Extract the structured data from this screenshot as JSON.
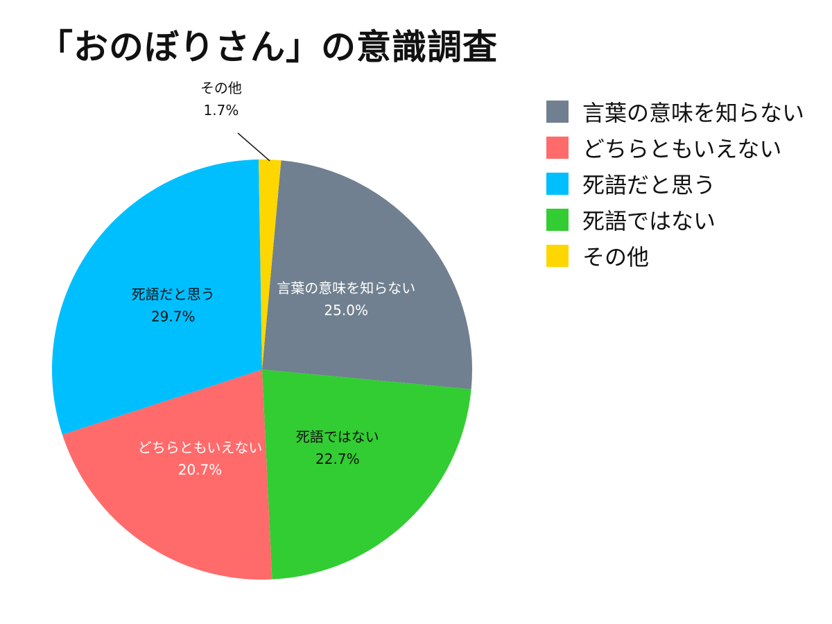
{
  "chart_data": {
    "type": "pie",
    "title": "「おのぼりさん」の意識調査",
    "legend_position": "top-right",
    "slices": [
      {
        "label": "言葉の意味を知らない",
        "value": 25.0,
        "value_label": "25.0%",
        "color": "#708090",
        "text_color": "#ffffff"
      },
      {
        "label": "死語ではない",
        "value": 22.7,
        "value_label": "22.7%",
        "color": "#32cd32",
        "text_color": "#111111"
      },
      {
        "label": "どちらともいえない",
        "value": 20.7,
        "value_label": "20.7%",
        "color": "#ff6b6b",
        "text_color": "#ffffff"
      },
      {
        "label": "死語だと思う",
        "value": 29.7,
        "value_label": "29.7%",
        "color": "#00bfff",
        "text_color": "#111111"
      },
      {
        "label": "その他",
        "value": 1.7,
        "value_label": "1.7%",
        "color": "#ffd700",
        "text_color": "#111111"
      }
    ],
    "legend": [
      {
        "label": "言葉の意味を知らない",
        "color": "#708090"
      },
      {
        "label": "どちらともいえない",
        "color": "#ff6b6b"
      },
      {
        "label": "死語だと思う",
        "color": "#00bfff"
      },
      {
        "label": "死語ではない",
        "color": "#32cd32"
      },
      {
        "label": "その他",
        "color": "#ffd700"
      }
    ]
  }
}
